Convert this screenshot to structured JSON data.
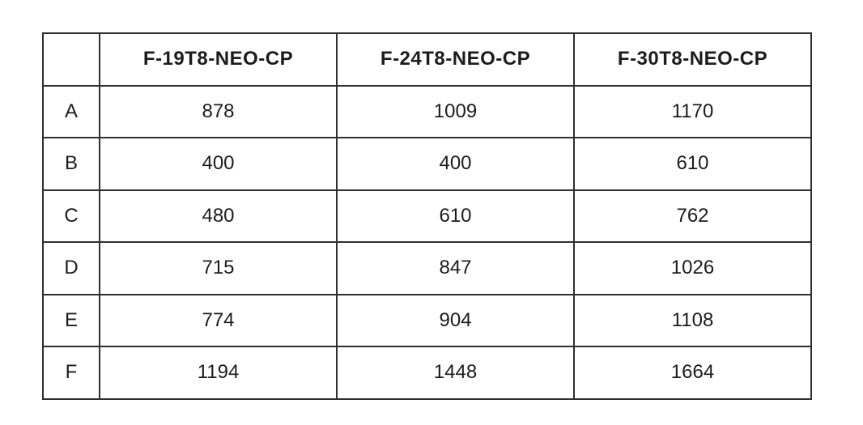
{
  "table": {
    "corner_label": "",
    "columns": [
      "F-19T8-NEO-CP",
      "F-24T8-NEO-CP",
      "F-30T8-NEO-CP"
    ],
    "rows": [
      {
        "label": "A",
        "values": [
          "878",
          "1009",
          "1170"
        ]
      },
      {
        "label": "B",
        "values": [
          "400",
          "400",
          "610"
        ]
      },
      {
        "label": "C",
        "values": [
          "480",
          "610",
          "762"
        ]
      },
      {
        "label": "D",
        "values": [
          "715",
          "847",
          "1026"
        ]
      },
      {
        "label": "E",
        "values": [
          "774",
          "904",
          "1108"
        ]
      },
      {
        "label": "F",
        "values": [
          "1194",
          "1448",
          "1664"
        ]
      }
    ],
    "colors": {
      "border": "#2f2f2f",
      "text": "#1c1c1c",
      "background": "#ffffff"
    }
  }
}
